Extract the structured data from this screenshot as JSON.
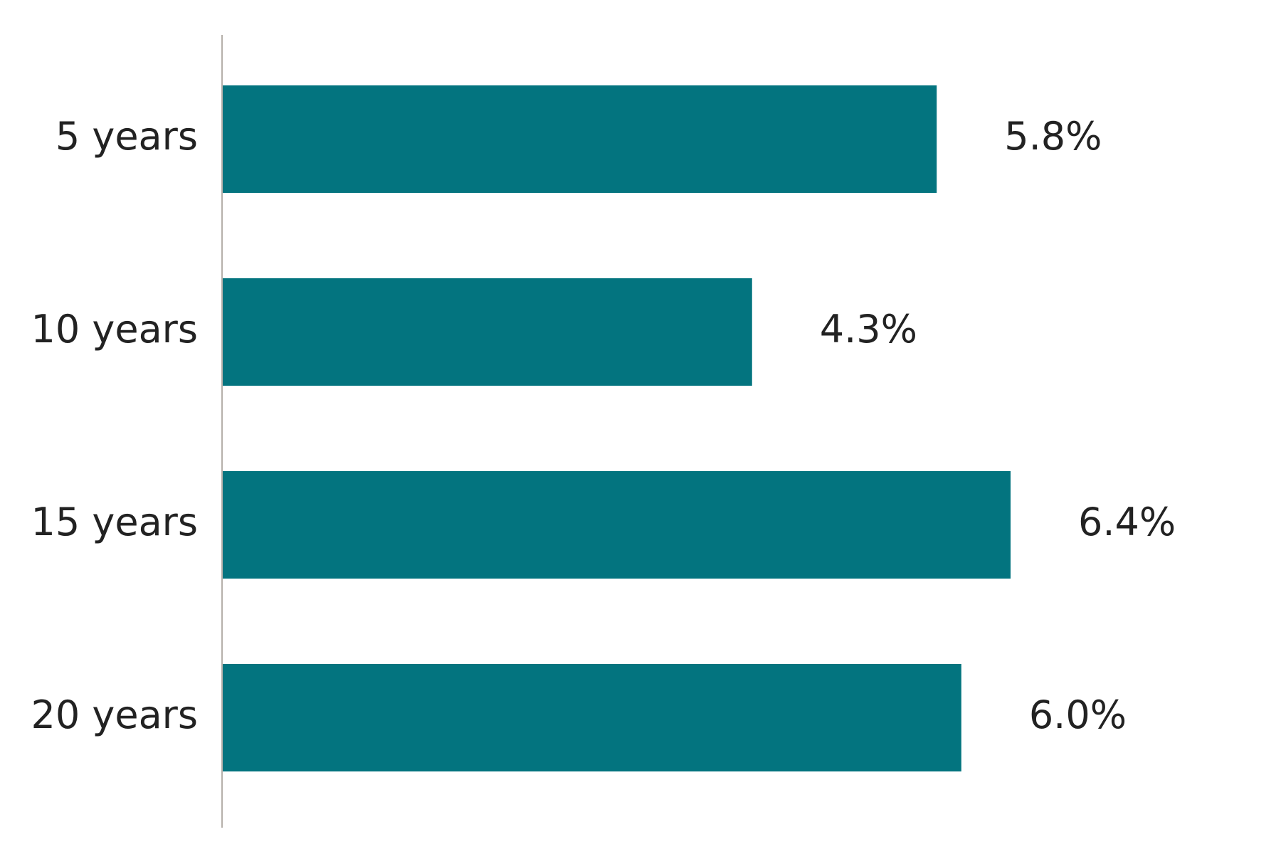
{
  "chart_data": {
    "type": "bar",
    "orientation": "horizontal",
    "categories": [
      "5 years",
      "10 years",
      "15 years",
      "20 years"
    ],
    "values": [
      5.8,
      4.3,
      6.4,
      6.0
    ],
    "value_labels": [
      "5.8%",
      "4.3%",
      "6.4%",
      "6.0%"
    ],
    "color": "#03747f"
  }
}
